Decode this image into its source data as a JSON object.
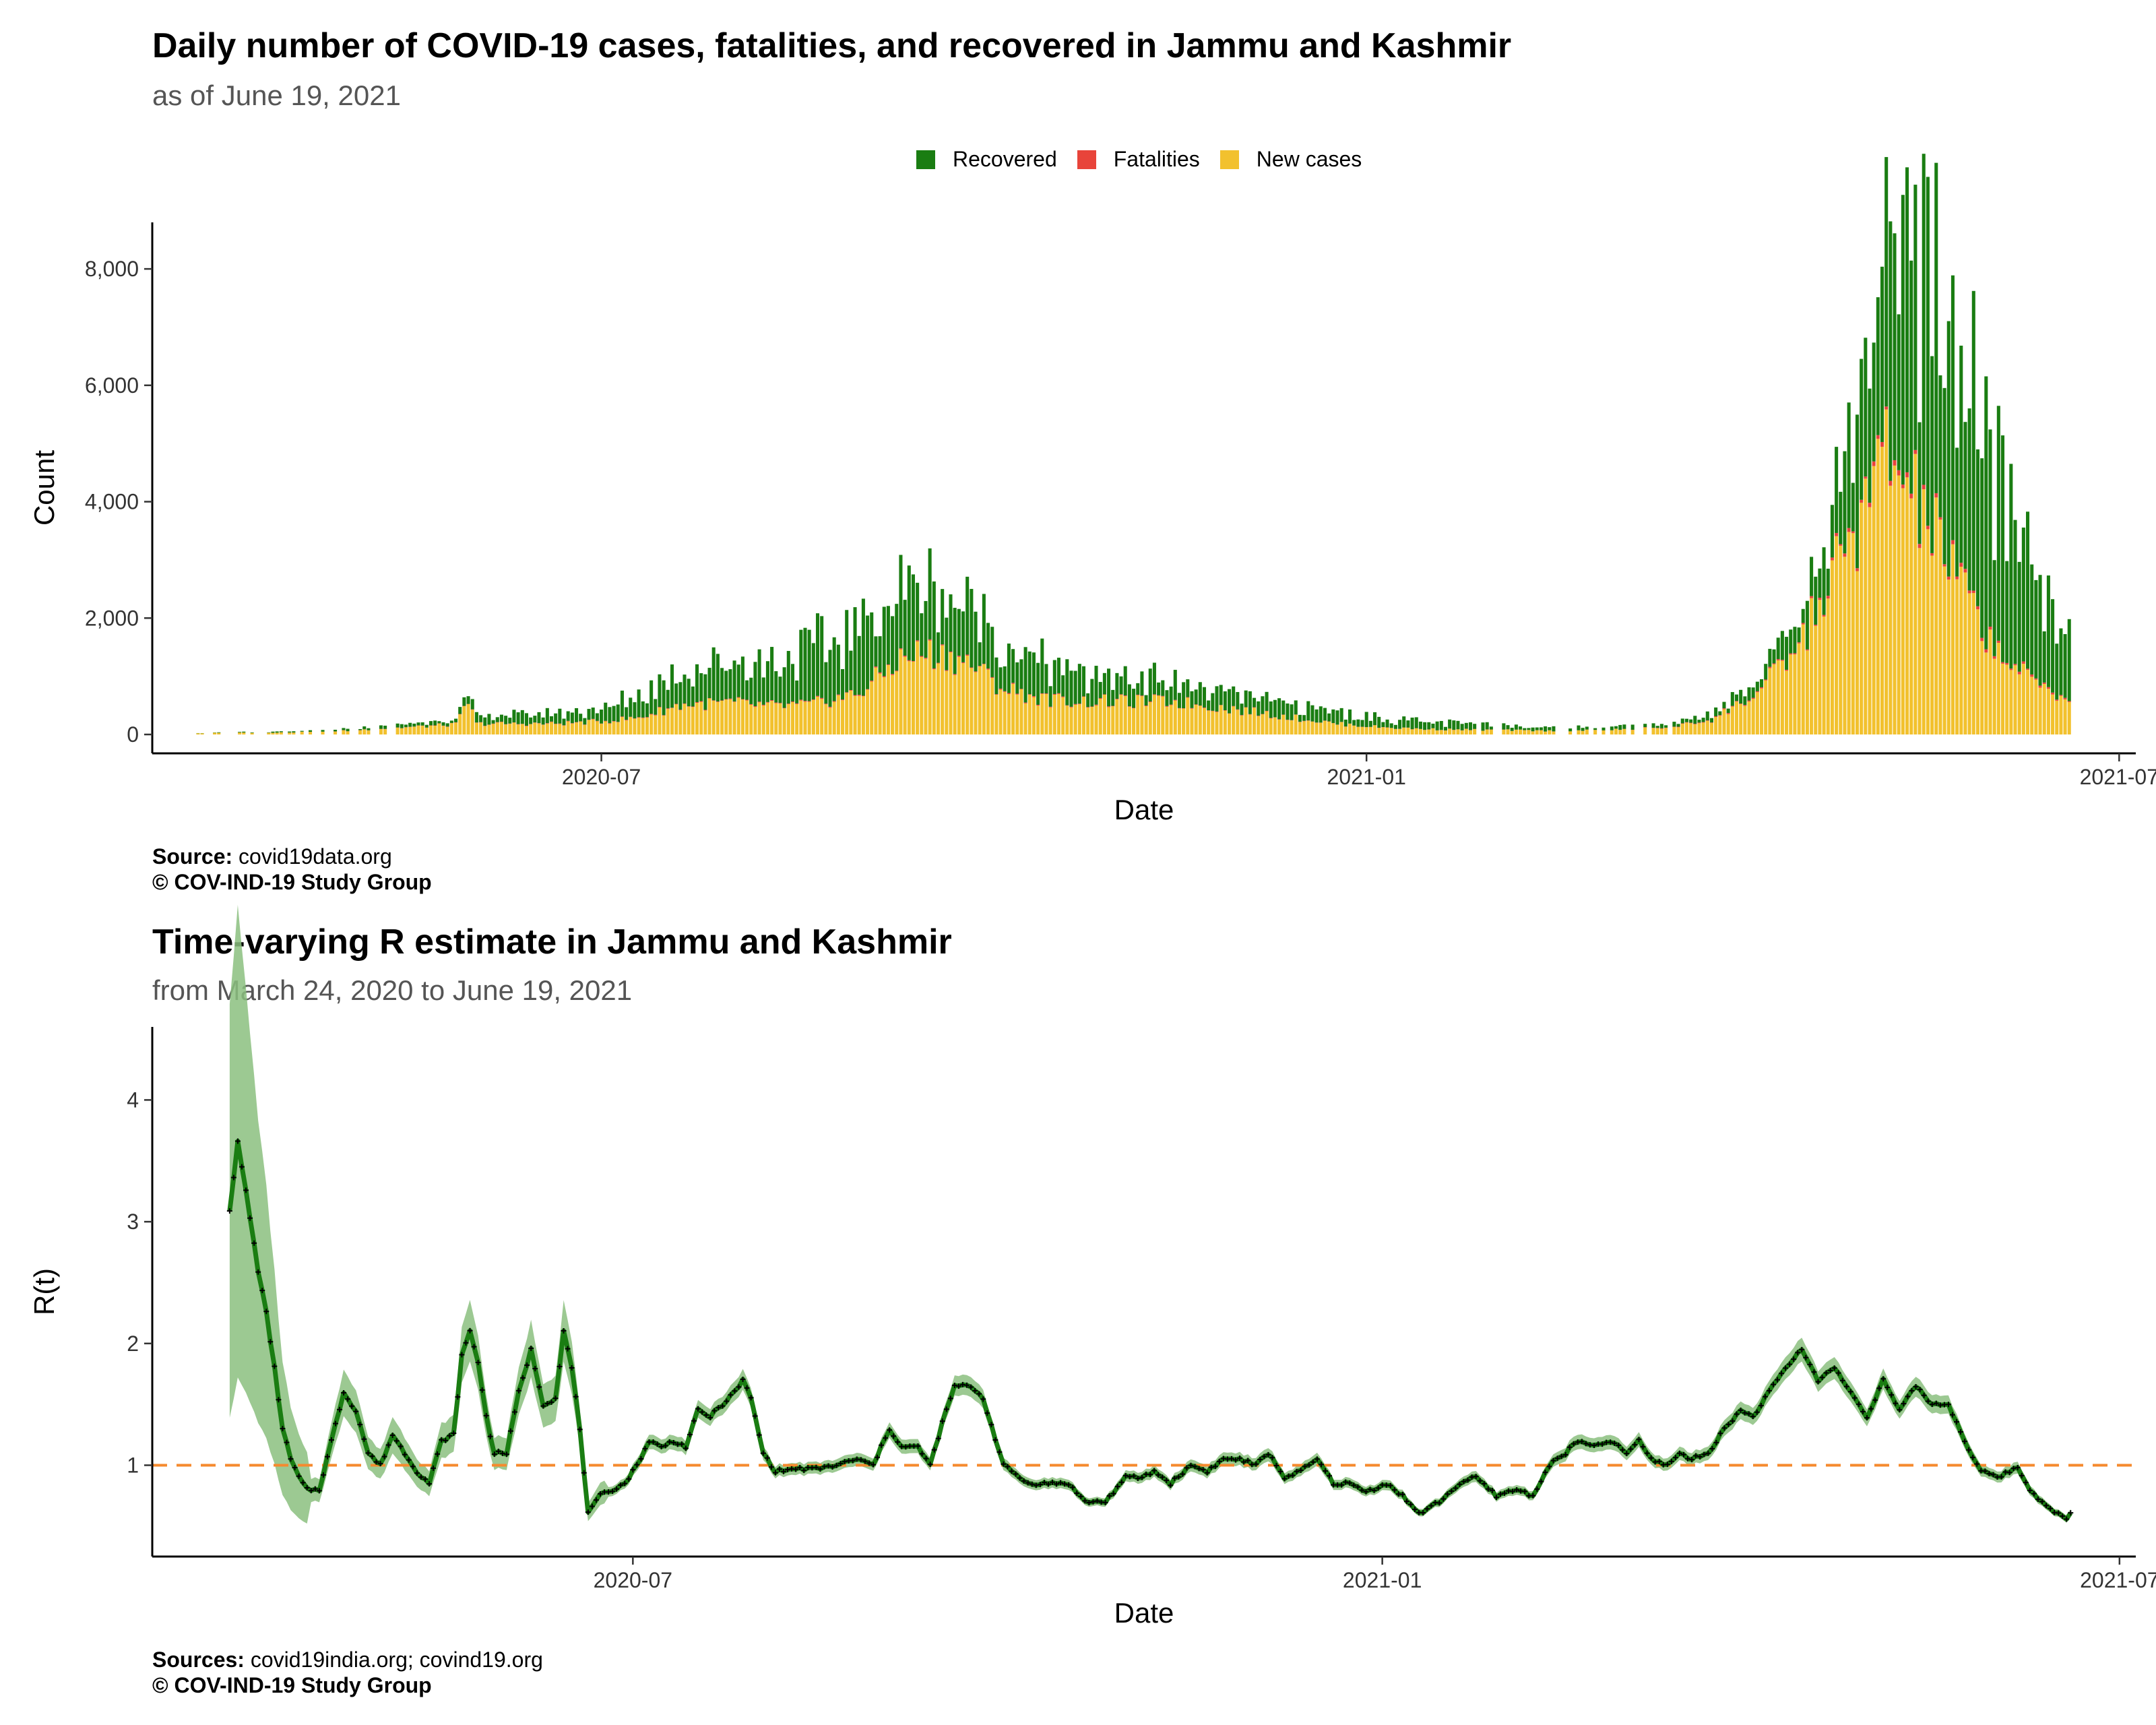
{
  "chart_data": [
    {
      "type": "bar",
      "stacked": true,
      "title": "Daily number of COVID-19 cases, fatalities, and recovered in Jammu and Kashmir",
      "subtitle": "as of June 19, 2021",
      "xlabel": "Date",
      "ylabel": "Count",
      "ylim": [
        0,
        8800
      ],
      "yticks": [
        0,
        2000,
        4000,
        6000,
        8000
      ],
      "ytick_labels": [
        "0",
        "2,000",
        "4,000",
        "6,000",
        "8,000"
      ],
      "xticks": [
        "2020-07-01",
        "2021-01-01",
        "2021-07-01"
      ],
      "xtick_labels": [
        "2020-07",
        "2021-01",
        "2021-07"
      ],
      "xlim": [
        "2020-03-15",
        "2021-07-05"
      ],
      "grid": false,
      "legend_position": "top",
      "colors": {
        "Recovered": "#1a7d12",
        "Fatalities": "#e8443a",
        "New cases": "#f2c12e"
      },
      "legend": [
        {
          "name": "Recovered",
          "color": "#1a7d12"
        },
        {
          "name": "Fatalities",
          "color": "#e8443a"
        },
        {
          "name": "New cases",
          "color": "#f2c12e"
        }
      ],
      "series": [
        {
          "name": "New cases",
          "values": [
            [
              "2020-03-25",
              20
            ],
            [
              "2020-04-05",
              30
            ],
            [
              "2020-04-25",
              40
            ],
            [
              "2020-05-05",
              80
            ],
            [
              "2020-05-20",
              140
            ],
            [
              "2020-05-27",
              170
            ],
            [
              "2020-05-30",
              560
            ],
            [
              "2020-06-01",
              180
            ],
            [
              "2020-06-10",
              180
            ],
            [
              "2020-06-20",
              180
            ],
            [
              "2020-07-01",
              220
            ],
            [
              "2020-07-10",
              280
            ],
            [
              "2020-07-20",
              500
            ],
            [
              "2020-08-01",
              540
            ],
            [
              "2020-08-10",
              480
            ],
            [
              "2020-08-20",
              500
            ],
            [
              "2020-09-01",
              700
            ],
            [
              "2020-09-10",
              1250
            ],
            [
              "2020-09-16",
              1400
            ],
            [
              "2020-09-22",
              1350
            ],
            [
              "2020-09-28",
              1200
            ],
            [
              "2020-10-05",
              800
            ],
            [
              "2020-10-15",
              600
            ],
            [
              "2020-10-25",
              560
            ],
            [
              "2020-11-05",
              560
            ],
            [
              "2020-11-15",
              560
            ],
            [
              "2020-11-25",
              480
            ],
            [
              "2020-12-05",
              380
            ],
            [
              "2020-12-15",
              280
            ],
            [
              "2020-12-25",
              180
            ],
            [
              "2021-01-05",
              120
            ],
            [
              "2021-01-15",
              90
            ],
            [
              "2021-01-25",
              80
            ],
            [
              "2021-02-05",
              70
            ],
            [
              "2021-02-15",
              60
            ],
            [
              "2021-02-25",
              70
            ],
            [
              "2021-03-05",
              90
            ],
            [
              "2021-03-15",
              120
            ],
            [
              "2021-03-25",
              250
            ],
            [
              "2021-04-05",
              700
            ],
            [
              "2021-04-15",
              1500
            ],
            [
              "2021-04-25",
              3000
            ],
            [
              "2021-05-01",
              3800
            ],
            [
              "2021-05-06",
              4900
            ],
            [
              "2021-05-10",
              4300
            ],
            [
              "2021-05-15",
              3800
            ],
            [
              "2021-05-20",
              3100
            ],
            [
              "2021-05-25",
              2400
            ],
            [
              "2021-06-01",
              1500
            ],
            [
              "2021-06-08",
              1000
            ],
            [
              "2021-06-19",
              600
            ]
          ]
        },
        {
          "name": "Fatalities",
          "values": [
            [
              "2020-03-25",
              0
            ],
            [
              "2020-06-01",
              5
            ],
            [
              "2020-08-01",
              10
            ],
            [
              "2020-09-15",
              15
            ],
            [
              "2020-11-01",
              10
            ],
            [
              "2021-01-01",
              3
            ],
            [
              "2021-03-01",
              2
            ],
            [
              "2021-04-15",
              20
            ],
            [
              "2021-05-06",
              70
            ],
            [
              "2021-05-20",
              55
            ],
            [
              "2021-06-19",
              20
            ]
          ]
        },
        {
          "name": "Recovered",
          "values": [
            [
              "2020-03-25",
              5
            ],
            [
              "2020-04-25",
              20
            ],
            [
              "2020-05-20",
              60
            ],
            [
              "2020-06-01",
              120
            ],
            [
              "2020-06-20",
              180
            ],
            [
              "2020-07-01",
              200
            ],
            [
              "2020-07-20",
              600
            ],
            [
              "2020-08-10",
              700
            ],
            [
              "2020-09-01",
              1100
            ],
            [
              "2020-09-15",
              1200
            ],
            [
              "2020-09-25",
              1000
            ],
            [
              "2020-10-10",
              700
            ],
            [
              "2020-10-25",
              450
            ],
            [
              "2020-11-15",
              350
            ],
            [
              "2020-12-05",
              250
            ],
            [
              "2020-12-25",
              200
            ],
            [
              "2021-01-15",
              120
            ],
            [
              "2021-02-15",
              60
            ],
            [
              "2021-03-15",
              60
            ],
            [
              "2021-04-05",
              200
            ],
            [
              "2021-04-15",
              450
            ],
            [
              "2021-04-25",
              1100
            ],
            [
              "2021-05-01",
              2300
            ],
            [
              "2021-05-06",
              2800
            ],
            [
              "2021-05-12",
              3700
            ],
            [
              "2021-05-18",
              4200
            ],
            [
              "2021-05-25",
              3700
            ],
            [
              "2021-06-01",
              3000
            ],
            [
              "2021-06-08",
              2200
            ],
            [
              "2021-06-19",
              1150
            ]
          ]
        }
      ],
      "caption_source_label": "Source:",
      "caption_source": "covid19data.org",
      "caption_credit": "© COV-IND-19 Study Group"
    },
    {
      "type": "line",
      "title": "Time-varying R estimate in Jammu and Kashmir",
      "subtitle": "from March 24, 2020 to June 19, 2021",
      "xlabel": "Date",
      "ylabel": "R(t)",
      "ylim": [
        0.25,
        4.6
      ],
      "yticks": [
        1,
        2,
        3,
        4
      ],
      "ytick_labels": [
        "1",
        "2",
        "3",
        "4"
      ],
      "xticks": [
        "2020-07-01",
        "2021-01-01",
        "2021-07-01"
      ],
      "xtick_labels": [
        "2020-07",
        "2021-01",
        "2021-07"
      ],
      "xlim": [
        "2020-03-05",
        "2021-07-05"
      ],
      "grid": false,
      "reference_line": {
        "y": 1,
        "style": "dashed",
        "color": "#f58a2e"
      },
      "colors": {
        "line": "#1a7d12",
        "band": "#8bbf7f",
        "points": "#000000"
      },
      "series": [
        {
          "name": "R(t)",
          "values": [
            [
              "2020-03-24",
              3.1
            ],
            [
              "2020-03-26",
              3.65
            ],
            [
              "2020-03-28",
              3.25
            ],
            [
              "2020-03-31",
              2.6
            ],
            [
              "2020-04-02",
              2.25
            ],
            [
              "2020-04-04",
              1.8
            ],
            [
              "2020-04-06",
              1.3
            ],
            [
              "2020-04-08",
              1.05
            ],
            [
              "2020-04-10",
              0.9
            ],
            [
              "2020-04-12",
              0.8
            ],
            [
              "2020-04-15",
              0.8
            ],
            [
              "2020-04-18",
              1.2
            ],
            [
              "2020-04-21",
              1.6
            ],
            [
              "2020-04-24",
              1.45
            ],
            [
              "2020-04-27",
              1.1
            ],
            [
              "2020-04-30",
              1.0
            ],
            [
              "2020-05-03",
              1.25
            ],
            [
              "2020-05-06",
              1.1
            ],
            [
              "2020-05-09",
              0.95
            ],
            [
              "2020-05-12",
              0.85
            ],
            [
              "2020-05-15",
              1.2
            ],
            [
              "2020-05-18",
              1.25
            ],
            [
              "2020-05-20",
              1.9
            ],
            [
              "2020-05-22",
              2.1
            ],
            [
              "2020-05-24",
              1.85
            ],
            [
              "2020-05-26",
              1.4
            ],
            [
              "2020-05-28",
              1.1
            ],
            [
              "2020-05-31",
              1.1
            ],
            [
              "2020-06-03",
              1.6
            ],
            [
              "2020-06-06",
              1.95
            ],
            [
              "2020-06-09",
              1.5
            ],
            [
              "2020-06-12",
              1.55
            ],
            [
              "2020-06-14",
              2.1
            ],
            [
              "2020-06-16",
              1.8
            ],
            [
              "2020-06-18",
              1.3
            ],
            [
              "2020-06-20",
              0.6
            ],
            [
              "2020-06-23",
              0.75
            ],
            [
              "2020-06-26",
              0.8
            ],
            [
              "2020-06-29",
              0.85
            ],
            [
              "2020-07-02",
              1.0
            ],
            [
              "2020-07-05",
              1.2
            ],
            [
              "2020-07-08",
              1.15
            ],
            [
              "2020-07-11",
              1.2
            ],
            [
              "2020-07-14",
              1.15
            ],
            [
              "2020-07-17",
              1.45
            ],
            [
              "2020-07-20",
              1.4
            ],
            [
              "2020-07-23",
              1.5
            ],
            [
              "2020-07-26",
              1.6
            ],
            [
              "2020-07-28",
              1.7
            ],
            [
              "2020-07-30",
              1.55
            ],
            [
              "2020-08-02",
              1.1
            ],
            [
              "2020-08-05",
              0.95
            ],
            [
              "2020-08-10",
              0.97
            ],
            [
              "2020-08-15",
              0.97
            ],
            [
              "2020-08-20",
              1.0
            ],
            [
              "2020-08-25",
              1.05
            ],
            [
              "2020-08-29",
              1.0
            ],
            [
              "2020-09-02",
              1.3
            ],
            [
              "2020-09-05",
              1.15
            ],
            [
              "2020-09-09",
              1.15
            ],
            [
              "2020-09-12",
              1.0
            ],
            [
              "2020-09-15",
              1.35
            ],
            [
              "2020-09-18",
              1.65
            ],
            [
              "2020-09-22",
              1.65
            ],
            [
              "2020-09-25",
              1.55
            ],
            [
              "2020-09-30",
              1.0
            ],
            [
              "2020-10-06",
              0.85
            ],
            [
              "2020-10-12",
              0.85
            ],
            [
              "2020-10-16",
              0.85
            ],
            [
              "2020-10-20",
              0.7
            ],
            [
              "2020-10-25",
              0.7
            ],
            [
              "2020-10-30",
              0.9
            ],
            [
              "2020-11-03",
              0.9
            ],
            [
              "2020-11-06",
              0.95
            ],
            [
              "2020-11-10",
              0.85
            ],
            [
              "2020-11-15",
              1.0
            ],
            [
              "2020-11-19",
              0.95
            ],
            [
              "2020-11-23",
              1.05
            ],
            [
              "2020-11-27",
              1.05
            ],
            [
              "2020-12-01",
              1.0
            ],
            [
              "2020-12-04",
              1.1
            ],
            [
              "2020-12-08",
              0.9
            ],
            [
              "2020-12-12",
              0.95
            ],
            [
              "2020-12-16",
              1.05
            ],
            [
              "2020-12-20",
              0.85
            ],
            [
              "2020-12-24",
              0.85
            ],
            [
              "2020-12-28",
              0.78
            ],
            [
              "2021-01-02",
              0.85
            ],
            [
              "2021-01-06",
              0.75
            ],
            [
              "2021-01-10",
              0.6
            ],
            [
              "2021-01-15",
              0.7
            ],
            [
              "2021-01-20",
              0.85
            ],
            [
              "2021-01-24",
              0.9
            ],
            [
              "2021-01-29",
              0.75
            ],
            [
              "2021-02-03",
              0.8
            ],
            [
              "2021-02-07",
              0.75
            ],
            [
              "2021-02-11",
              1.0
            ],
            [
              "2021-02-15",
              1.1
            ],
            [
              "2021-02-18",
              1.2
            ],
            [
              "2021-02-22",
              1.15
            ],
            [
              "2021-02-26",
              1.2
            ],
            [
              "2021-03-02",
              1.1
            ],
            [
              "2021-03-05",
              1.2
            ],
            [
              "2021-03-08",
              1.05
            ],
            [
              "2021-03-12",
              1.0
            ],
            [
              "2021-03-15",
              1.1
            ],
            [
              "2021-03-18",
              1.05
            ],
            [
              "2021-03-22",
              1.1
            ],
            [
              "2021-03-26",
              1.3
            ],
            [
              "2021-03-30",
              1.45
            ],
            [
              "2021-04-02",
              1.4
            ],
            [
              "2021-04-06",
              1.6
            ],
            [
              "2021-04-10",
              1.8
            ],
            [
              "2021-04-14",
              1.95
            ],
            [
              "2021-04-18",
              1.7
            ],
            [
              "2021-04-22",
              1.8
            ],
            [
              "2021-04-26",
              1.6
            ],
            [
              "2021-04-30",
              1.4
            ],
            [
              "2021-05-04",
              1.7
            ],
            [
              "2021-05-08",
              1.45
            ],
            [
              "2021-05-12",
              1.65
            ],
            [
              "2021-05-16",
              1.5
            ],
            [
              "2021-05-20",
              1.5
            ],
            [
              "2021-05-24",
              1.2
            ],
            [
              "2021-05-28",
              0.95
            ],
            [
              "2021-06-01",
              0.9
            ],
            [
              "2021-06-04",
              0.95
            ],
            [
              "2021-06-06",
              0.98
            ],
            [
              "2021-06-09",
              0.8
            ],
            [
              "2021-06-12",
              0.7
            ],
            [
              "2021-06-14",
              0.65
            ],
            [
              "2021-06-16",
              0.6
            ],
            [
              "2021-06-18",
              0.55
            ],
            [
              "2021-06-19",
              0.6
            ]
          ]
        }
      ],
      "caption_source_label": "Sources:",
      "caption_source": "covid19india.org; covind19.org",
      "caption_credit": "© COV-IND-19 Study Group"
    }
  ]
}
